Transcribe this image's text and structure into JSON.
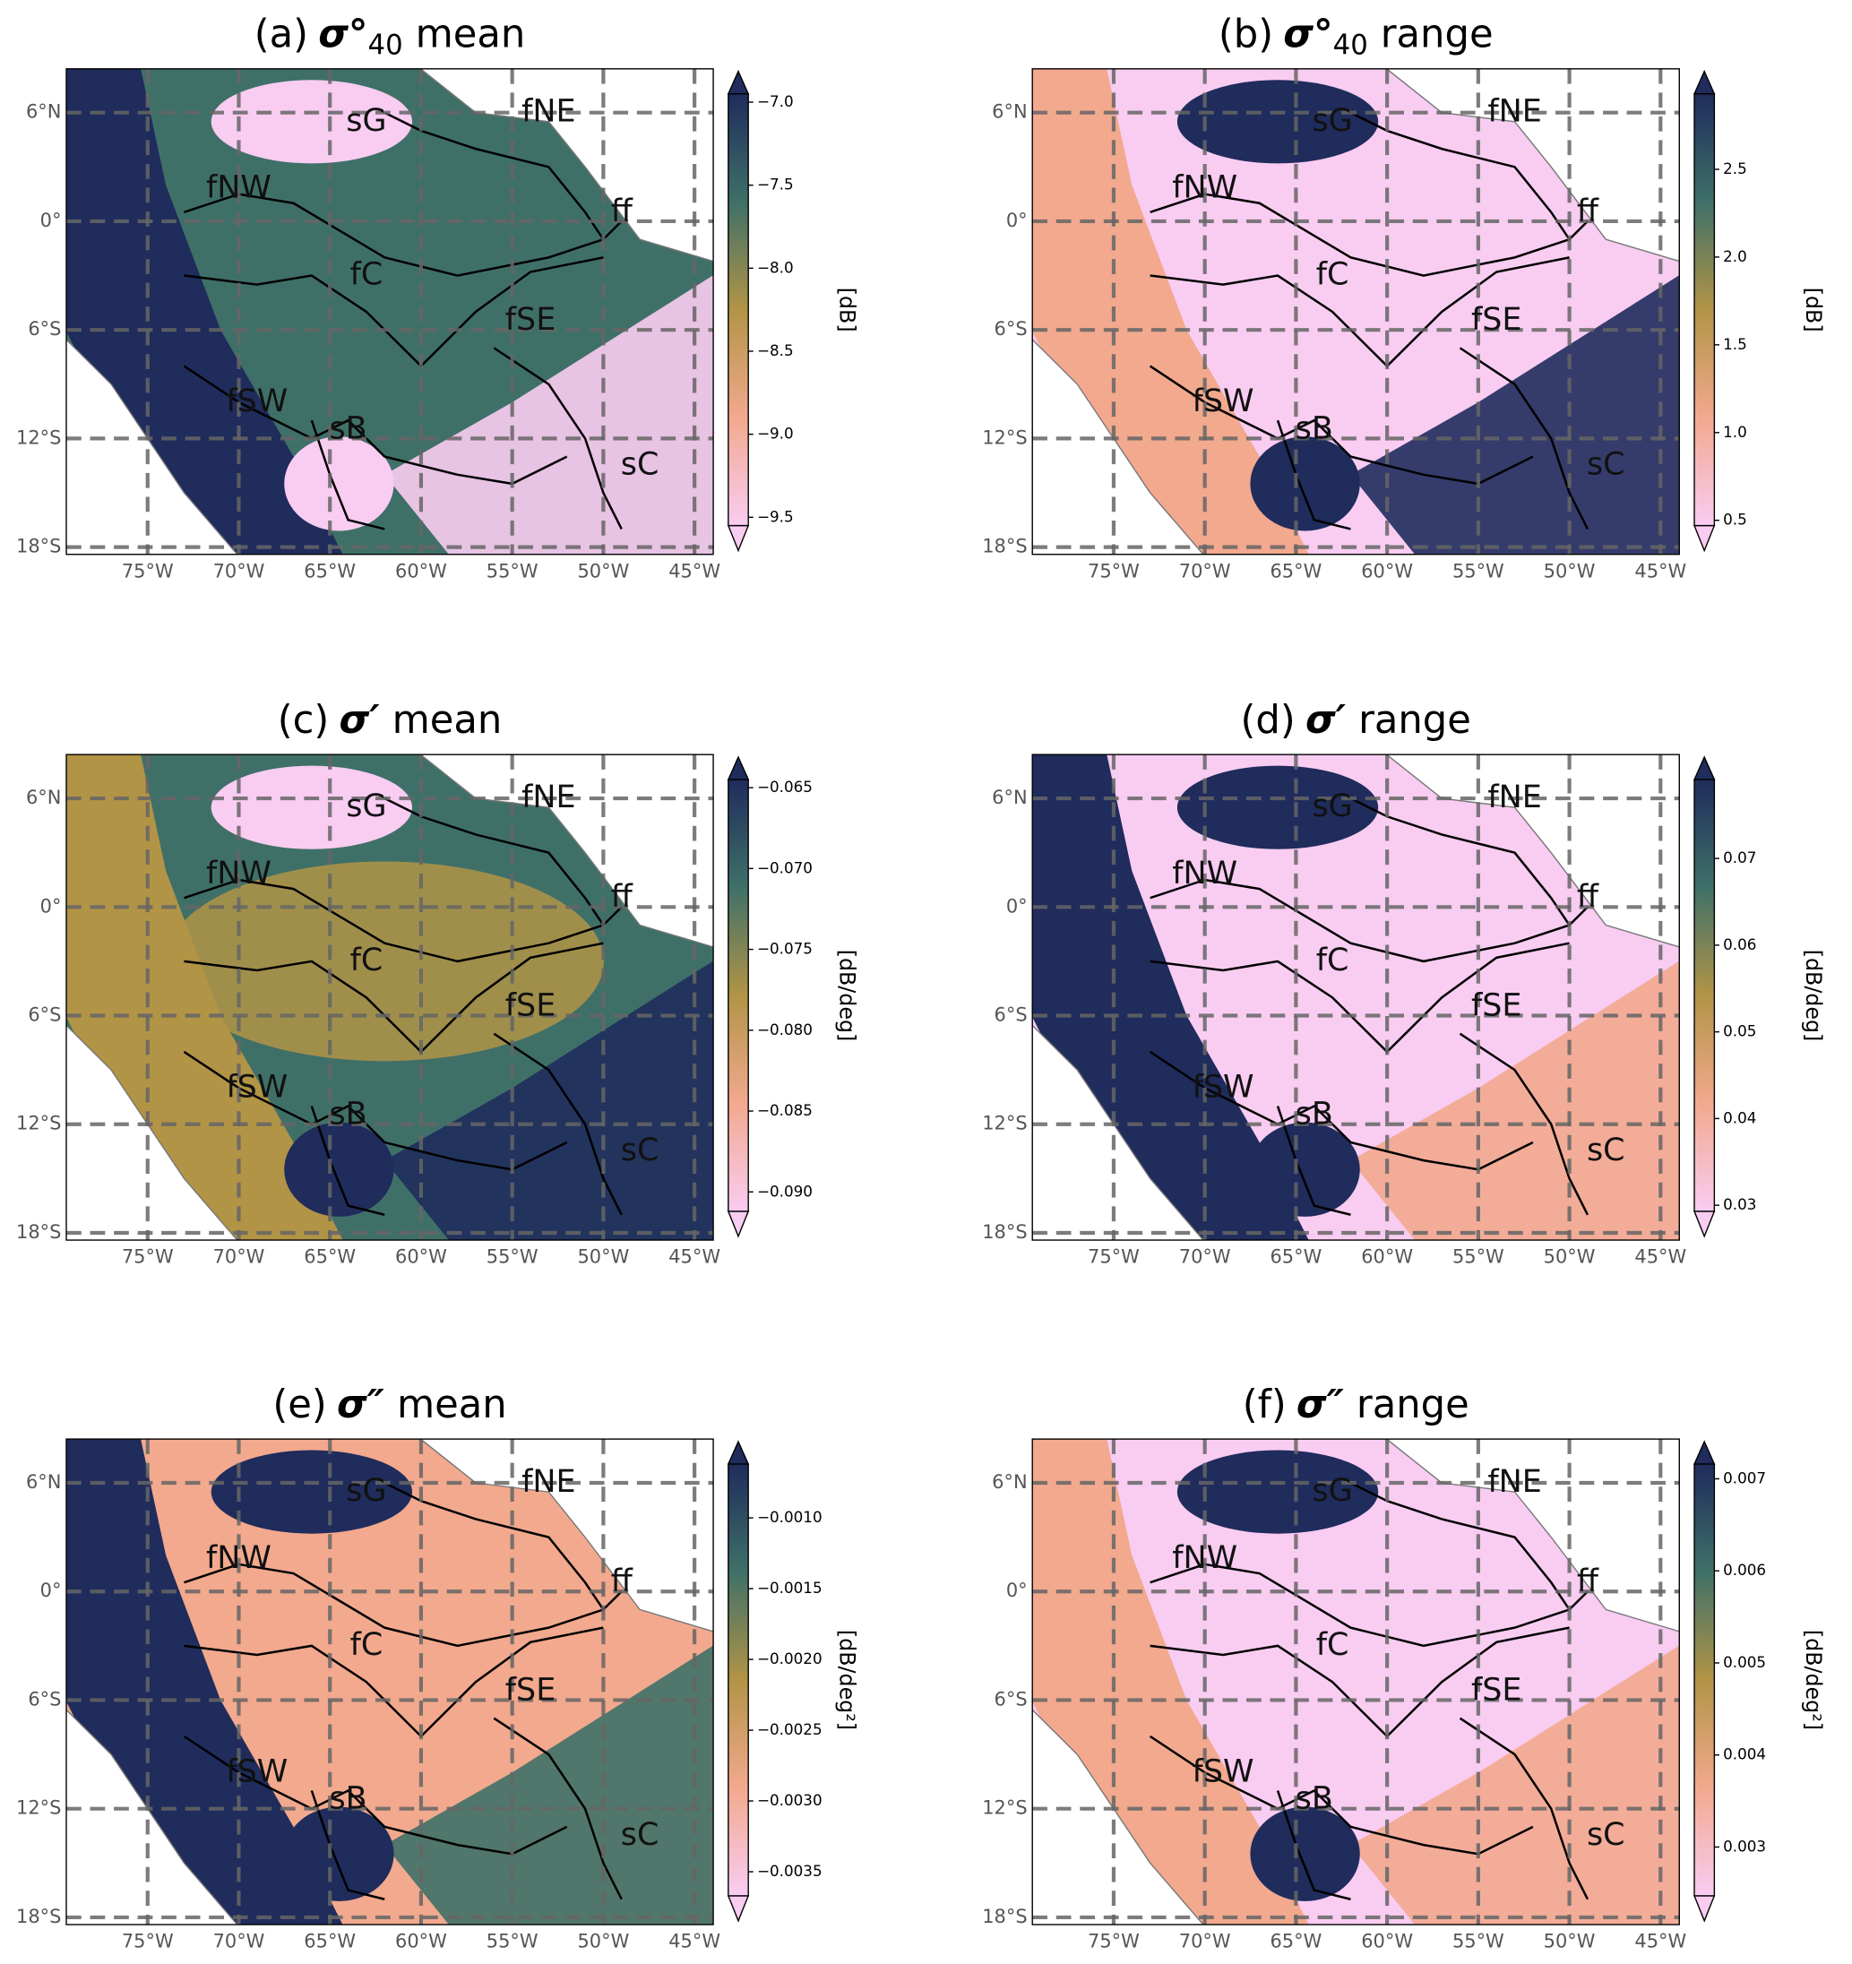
{
  "map": {
    "xlim": [
      -79.46,
      -43.97
    ],
    "ylim": [
      -18.4,
      8.42
    ],
    "xticks": [
      {
        "value": -75,
        "label": "75°W"
      },
      {
        "value": -70,
        "label": "70°W"
      },
      {
        "value": -65,
        "label": "65°W"
      },
      {
        "value": -60,
        "label": "60°W"
      },
      {
        "value": -55,
        "label": "55°W"
      },
      {
        "value": -50,
        "label": "50°W"
      },
      {
        "value": -45,
        "label": "45°W"
      }
    ],
    "yticks": [
      {
        "value": 6,
        "label": "6°N"
      },
      {
        "value": 0,
        "label": "0°"
      },
      {
        "value": -6,
        "label": "6°S"
      },
      {
        "value": -12,
        "label": "12°S"
      },
      {
        "value": -18,
        "label": "18°S"
      }
    ],
    "regions": [
      "sG",
      "fNE",
      "fNW",
      "ff",
      "fC",
      "fSE",
      "fSW",
      "sB",
      "sC"
    ],
    "colormap": [
      "#f9ccf2",
      "#f2a98e",
      "#b29446",
      "#3f7068",
      "#1f2c5c"
    ]
  },
  "panels": [
    {
      "label": "(a)",
      "symbol": "σ°",
      "subscript": "40",
      "quantity": "mean",
      "colorbar_label": "[dB]",
      "clim": [
        -9.55,
        -6.95
      ],
      "cticks": [
        {
          "value": -7,
          "label": "−7.0"
        },
        {
          "value": -7.5,
          "label": "−7.5"
        },
        {
          "value": -8,
          "label": "−8.0"
        },
        {
          "value": -8.5,
          "label": "−8.5"
        },
        {
          "value": -9,
          "label": "−9.0"
        },
        {
          "value": -9.5,
          "label": "−9.5"
        }
      ]
    },
    {
      "label": "(b)",
      "symbol": "σ°",
      "subscript": "40",
      "quantity": "range",
      "colorbar_label": "[dB]",
      "clim": [
        0.47,
        2.93
      ],
      "cticks": [
        0.5,
        {
          "value": 1,
          "label": "1.0"
        },
        1.5,
        {
          "value": 2,
          "label": "2.0"
        },
        2.5
      ]
    },
    {
      "label": "(c)",
      "symbol": "σ′",
      "quantity": "mean",
      "colorbar_label": "[dB/deg]",
      "clim": [
        -0.0912,
        -0.0645
      ],
      "cticks": [
        {
          "value": -0.065,
          "label": "−0.065"
        },
        {
          "value": -0.07,
          "label": "−0.070"
        },
        {
          "value": -0.075,
          "label": "−0.075"
        },
        {
          "value": -0.08,
          "label": "−0.080"
        },
        {
          "value": -0.085,
          "label": "−0.085"
        },
        {
          "value": -0.09,
          "label": "−0.090"
        }
      ]
    },
    {
      "label": "(d)",
      "symbol": "σ′",
      "quantity": "range",
      "colorbar_label": "[dB/deg]",
      "clim": [
        0.0293,
        0.0791
      ],
      "cticks": [
        0.03,
        0.04,
        0.05,
        0.06,
        0.07
      ]
    },
    {
      "label": "(e)",
      "symbol": "σ″",
      "quantity": "mean",
      "colorbar_label": "[dB/deg²]",
      "clim": [
        -0.00367,
        -0.00062
      ],
      "cticks": [
        {
          "value": -0.001,
          "label": "−0.0010"
        },
        {
          "value": -0.0015,
          "label": "−0.0015"
        },
        {
          "value": -0.002,
          "label": "−0.0020"
        },
        {
          "value": -0.0025,
          "label": "−0.0025"
        },
        {
          "value": -0.003,
          "label": "−0.0030"
        },
        {
          "value": -0.0035,
          "label": "−0.0035"
        }
      ]
    },
    {
      "label": "(f)",
      "symbol": "σ″",
      "quantity": "range",
      "colorbar_label": "[dB/deg²]",
      "clim": [
        0.00247,
        0.00716
      ],
      "cticks": [
        0.003,
        0.004,
        0.005,
        0.006,
        0.007
      ]
    }
  ]
}
